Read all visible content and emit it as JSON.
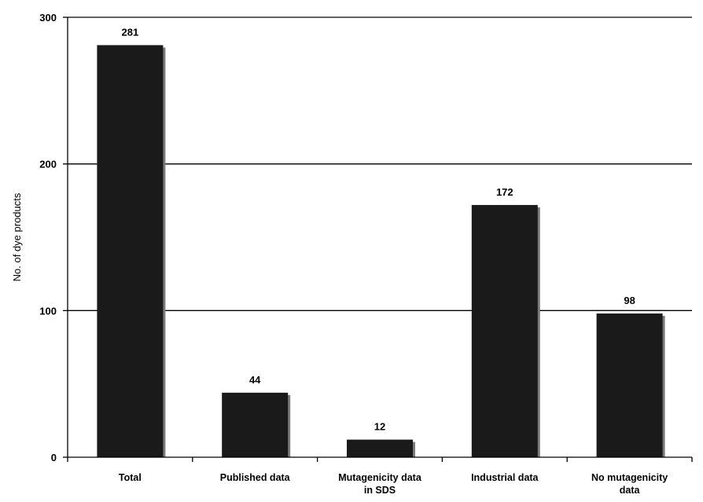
{
  "chart_data": {
    "type": "bar",
    "categories": [
      [
        "Total"
      ],
      [
        "Published data"
      ],
      [
        "Mutagenicity data",
        "in SDS"
      ],
      [
        "Industrial data"
      ],
      [
        "No mutagenicity",
        "data"
      ]
    ],
    "values": [
      281,
      44,
      12,
      172,
      98
    ],
    "data_labels": [
      "281",
      "44",
      "12",
      "172",
      "98"
    ],
    "title": "",
    "xlabel": "",
    "ylabel": "No. of dye  products",
    "ylim": [
      0,
      300
    ],
    "yticks": [
      0,
      100,
      200,
      300
    ],
    "grid": true,
    "legend": "none",
    "bar_color": "#1a1a1a",
    "shadow_color": "#7a7a7a"
  }
}
